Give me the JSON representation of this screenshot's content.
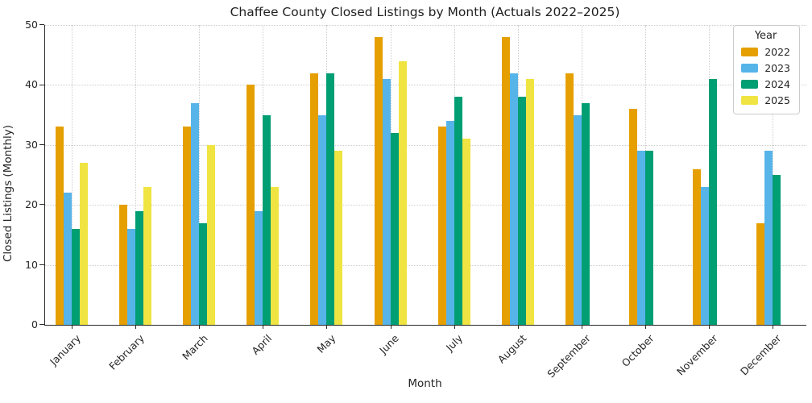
{
  "figure": {
    "background": "#ffffff",
    "axis_color": "#2a2a2a",
    "grid_color": "#cccccc"
  },
  "chart_data": {
    "type": "bar",
    "title": "Chaffee County Closed Listings by Month (Actuals 2022–2025)",
    "xlabel": "Month",
    "ylabel": "Closed Listings (Monthly)",
    "ylim": [
      0,
      50
    ],
    "yticks": [
      0,
      10,
      20,
      30,
      40,
      50
    ],
    "grid": true,
    "legend": {
      "title": "Year",
      "position": "upper-right"
    },
    "categories": [
      "January",
      "February",
      "March",
      "April",
      "May",
      "June",
      "July",
      "August",
      "September",
      "October",
      "November",
      "December"
    ],
    "series": [
      {
        "name": "2022",
        "color": "#E69F00",
        "values": [
          33,
          20,
          33,
          40,
          42,
          48,
          33,
          48,
          42,
          36,
          26,
          17
        ]
      },
      {
        "name": "2023",
        "color": "#56B4E9",
        "values": [
          22,
          16,
          37,
          19,
          35,
          41,
          34,
          42,
          35,
          29,
          23,
          29
        ]
      },
      {
        "name": "2024",
        "color": "#009E73",
        "values": [
          16,
          19,
          17,
          35,
          42,
          32,
          38,
          38,
          37,
          29,
          41,
          25
        ]
      },
      {
        "name": "2025",
        "color": "#F0E442",
        "values": [
          27,
          23,
          30,
          23,
          29,
          44,
          31,
          41,
          null,
          null,
          null,
          null
        ]
      }
    ]
  }
}
